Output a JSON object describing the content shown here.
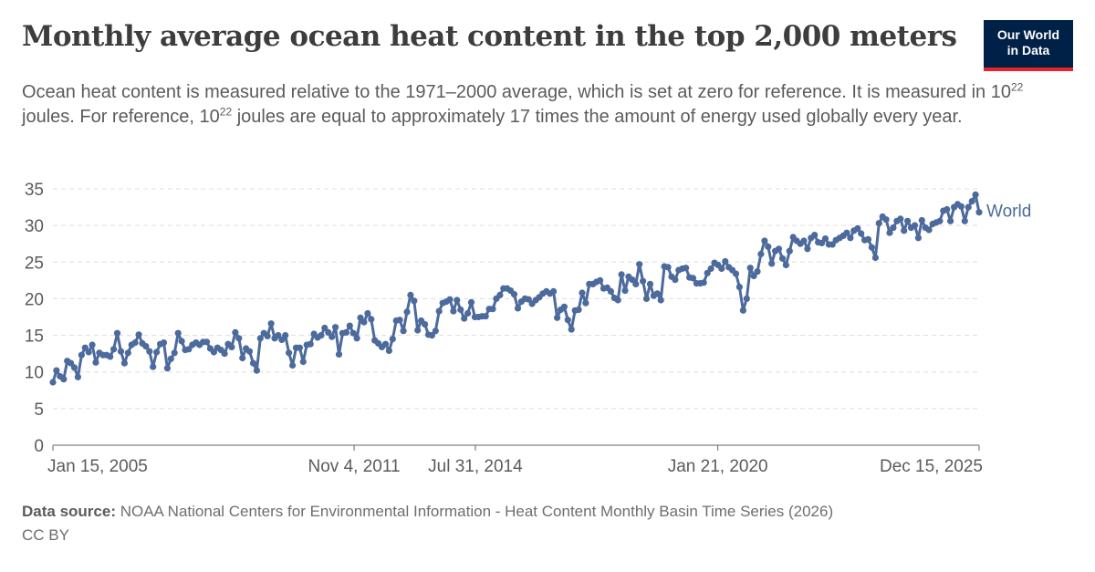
{
  "header": {
    "title": "Monthly average ocean heat content in the top 2,000 meters",
    "subtitle_part1": "Ocean heat content is measured relative to the 1971–2000 average, which is set at zero for reference. It is measured in 10",
    "subtitle_sup1": "22",
    "subtitle_part2": " joules. For reference, 10",
    "subtitle_sup2": "22",
    "subtitle_part3": " joules are equal to approximately 17 times the amount of energy used globally every year."
  },
  "logo": {
    "line1": "Our World",
    "line2": "in Data"
  },
  "footer": {
    "source_label": "Data source:",
    "source_text": "NOAA National Centers for Environmental Information - Heat Content Monthly Basin Time Series (2026)",
    "license": "CC BY"
  },
  "colors": {
    "series": "#4c6a9c",
    "grid": "#dddddd",
    "axis": "#666666",
    "text": "#5b5b5b"
  },
  "chart_data": {
    "type": "line",
    "x_start": "Jan 15, 2005",
    "x_end": "Dec 15, 2025",
    "x_ticks": [
      "Jan 15, 2005",
      "Nov 4, 2011",
      "Jul 31, 2014",
      "Jan 21, 2020",
      "Dec 15, 2025"
    ],
    "y_ticks": [
      0,
      5,
      10,
      15,
      20,
      25,
      30,
      35
    ],
    "ylim": [
      0,
      35
    ],
    "grid": "horizontal dashed",
    "series": [
      {
        "name": "World",
        "values": [
          8.6,
          10.2,
          9.4,
          9.0,
          11.5,
          11.2,
          10.6,
          9.3,
          12.3,
          13.3,
          12.7,
          13.7,
          11.3,
          12.6,
          12.3,
          12.3,
          12.1,
          13.1,
          15.3,
          12.8,
          11.2,
          12.6,
          13.7,
          14.0,
          15.1,
          13.9,
          13.5,
          12.8,
          10.7,
          12.7,
          13.8,
          14.0,
          10.5,
          11.8,
          12.6,
          15.3,
          14.2,
          13.0,
          13.1,
          13.7,
          14.0,
          13.7,
          14.1,
          14.1,
          13.2,
          12.7,
          13.3,
          13.0,
          12.5,
          13.8,
          13.4,
          15.4,
          14.6,
          11.9,
          13.2,
          12.8,
          11.2,
          10.2,
          14.6,
          15.3,
          14.9,
          16.6,
          14.6,
          15.0,
          14.4,
          15.0,
          12.6,
          10.9,
          13.3,
          13.3,
          11.4,
          13.7,
          13.8,
          15.2,
          14.7,
          15.0,
          16.0,
          15.4,
          14.8,
          16.1,
          12.4,
          15.3,
          15.4,
          16.3,
          15.3,
          14.6,
          17.4,
          16.8,
          18.0,
          17.2,
          14.3,
          13.9,
          13.4,
          13.8,
          12.9,
          14.5,
          17.0,
          17.1,
          15.6,
          18.2,
          20.5,
          19.7,
          15.7,
          17.0,
          16.5,
          15.1,
          15.0,
          15.6,
          18.3,
          19.4,
          19.6,
          19.9,
          18.3,
          19.8,
          18.5,
          17.3,
          18.0,
          19.5,
          17.5,
          17.5,
          17.6,
          17.6,
          18.6,
          18.6,
          20.0,
          20.5,
          21.4,
          21.4,
          21.1,
          20.6,
          18.7,
          19.6,
          20.0,
          19.9,
          19.3,
          19.8,
          20.2,
          20.7,
          21.0,
          20.7,
          21.0,
          17.4,
          18.5,
          18.9,
          17.1,
          15.8,
          18.4,
          18.5,
          20.8,
          19.4,
          22.0,
          22.0,
          22.3,
          22.5,
          21.4,
          21.5,
          21.0,
          20.1,
          19.8,
          23.3,
          21.1,
          23.0,
          22.6,
          22.0,
          24.7,
          22.4,
          20.0,
          22.0,
          20.4,
          20.7,
          19.8,
          24.4,
          24.3,
          23.0,
          22.6,
          23.9,
          24.1,
          24.2,
          22.9,
          22.8,
          22.1,
          22.1,
          22.2,
          23.5,
          24.1,
          24.9,
          24.6,
          24.1,
          25.1,
          24.3,
          23.9,
          23.4,
          21.6,
          18.4,
          20.0,
          24.2,
          23.1,
          23.7,
          26.1,
          27.9,
          27.1,
          24.8,
          26.5,
          26.8,
          25.5,
          24.6,
          26.5,
          28.4,
          27.9,
          27.5,
          27.9,
          26.8,
          28.3,
          28.7,
          27.7,
          27.6,
          28.2,
          27.4,
          27.4,
          28.0,
          28.3,
          28.6,
          29.0,
          28.3,
          29.3,
          29.6,
          28.9,
          28.0,
          28.1,
          27.0,
          25.6,
          30.3,
          31.2,
          30.8,
          29.0,
          29.7,
          30.6,
          30.9,
          29.3,
          30.6,
          29.7,
          30.0,
          28.3,
          30.7,
          29.7,
          29.4,
          30.2,
          30.4,
          30.6,
          32.0,
          32.2,
          30.6,
          32.5,
          32.9,
          32.6,
          30.6,
          32.5,
          33.3,
          34.2,
          31.8
        ]
      }
    ]
  }
}
